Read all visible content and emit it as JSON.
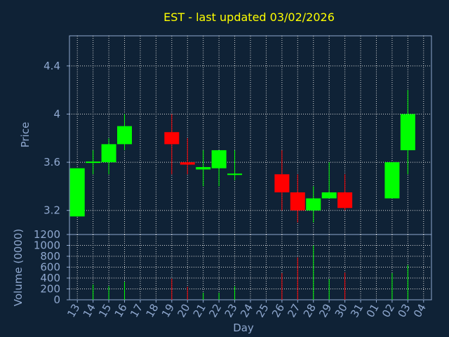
{
  "colors": {
    "background": "#0f2236",
    "title": "#ffff00",
    "text": "#8fa8cf",
    "axis": "#8fa8cf",
    "grid": "#d8d8d8",
    "up": "#00ff00",
    "down": "#ff0000"
  },
  "chart_data": {
    "type": "candlestick",
    "title": "EST - last updated 03/02/2026",
    "xlabel": "Day",
    "price_ylabel": "Price",
    "volume_ylabel": "Volume (0000)",
    "price_ylim": [
      3.0,
      4.65
    ],
    "price_ticks": [
      "3.2",
      "3.6",
      "4",
      "4.4"
    ],
    "volume_ylim": [
      0,
      1200
    ],
    "volume_ticks": [
      "0",
      "200",
      "400",
      "600",
      "800",
      "1000",
      "1200"
    ],
    "grid": true,
    "days": [
      "13",
      "14",
      "15",
      "16",
      "17",
      "18",
      "19",
      "20",
      "21",
      "22",
      "23",
      "24",
      "25",
      "26",
      "27",
      "28",
      "29",
      "30",
      "31",
      "01",
      "02",
      "03",
      "04"
    ],
    "candles": [
      {
        "day": "13",
        "open": 3.15,
        "high": 3.55,
        "low": 3.15,
        "close": 3.55,
        "volume": 0
      },
      {
        "day": "14",
        "open": 3.59,
        "high": 3.7,
        "low": 3.5,
        "close": 3.6,
        "volume": 280
      },
      {
        "day": "15",
        "open": 3.6,
        "high": 3.8,
        "low": 3.5,
        "close": 3.75,
        "volume": 250
      },
      {
        "day": "16",
        "open": 3.75,
        "high": 4.0,
        "low": 3.7,
        "close": 3.9,
        "volume": 330
      },
      {
        "day": "19",
        "open": 3.85,
        "high": 4.0,
        "low": 3.5,
        "close": 3.75,
        "volume": 390
      },
      {
        "day": "20",
        "open": 3.6,
        "high": 3.8,
        "low": 3.5,
        "close": 3.58,
        "volume": 240
      },
      {
        "day": "21",
        "open": 3.54,
        "high": 3.7,
        "low": 3.4,
        "close": 3.56,
        "volume": 130
      },
      {
        "day": "22",
        "open": 3.55,
        "high": 3.7,
        "low": 3.4,
        "close": 3.7,
        "volume": 130
      },
      {
        "day": "23",
        "open": 3.49,
        "high": 3.7,
        "low": 3.45,
        "close": 3.5,
        "volume": 250
      },
      {
        "day": "26",
        "open": 3.5,
        "high": 3.7,
        "low": 3.2,
        "close": 3.35,
        "volume": 490
      },
      {
        "day": "27",
        "open": 3.35,
        "high": 3.5,
        "low": 3.1,
        "close": 3.2,
        "volume": 780
      },
      {
        "day": "28",
        "open": 3.2,
        "high": 3.4,
        "low": 3.1,
        "close": 3.3,
        "volume": 1000
      },
      {
        "day": "29",
        "open": 3.3,
        "high": 3.6,
        "low": 3.3,
        "close": 3.35,
        "volume": 380
      },
      {
        "day": "30",
        "open": 3.35,
        "high": 3.5,
        "low": 3.2,
        "close": 3.22,
        "volume": 500
      },
      {
        "day": "02",
        "open": 3.3,
        "high": 3.6,
        "low": 3.3,
        "close": 3.6,
        "volume": 490
      },
      {
        "day": "03",
        "open": 3.7,
        "high": 4.2,
        "low": 3.5,
        "close": 4.0,
        "volume": 640
      }
    ]
  }
}
